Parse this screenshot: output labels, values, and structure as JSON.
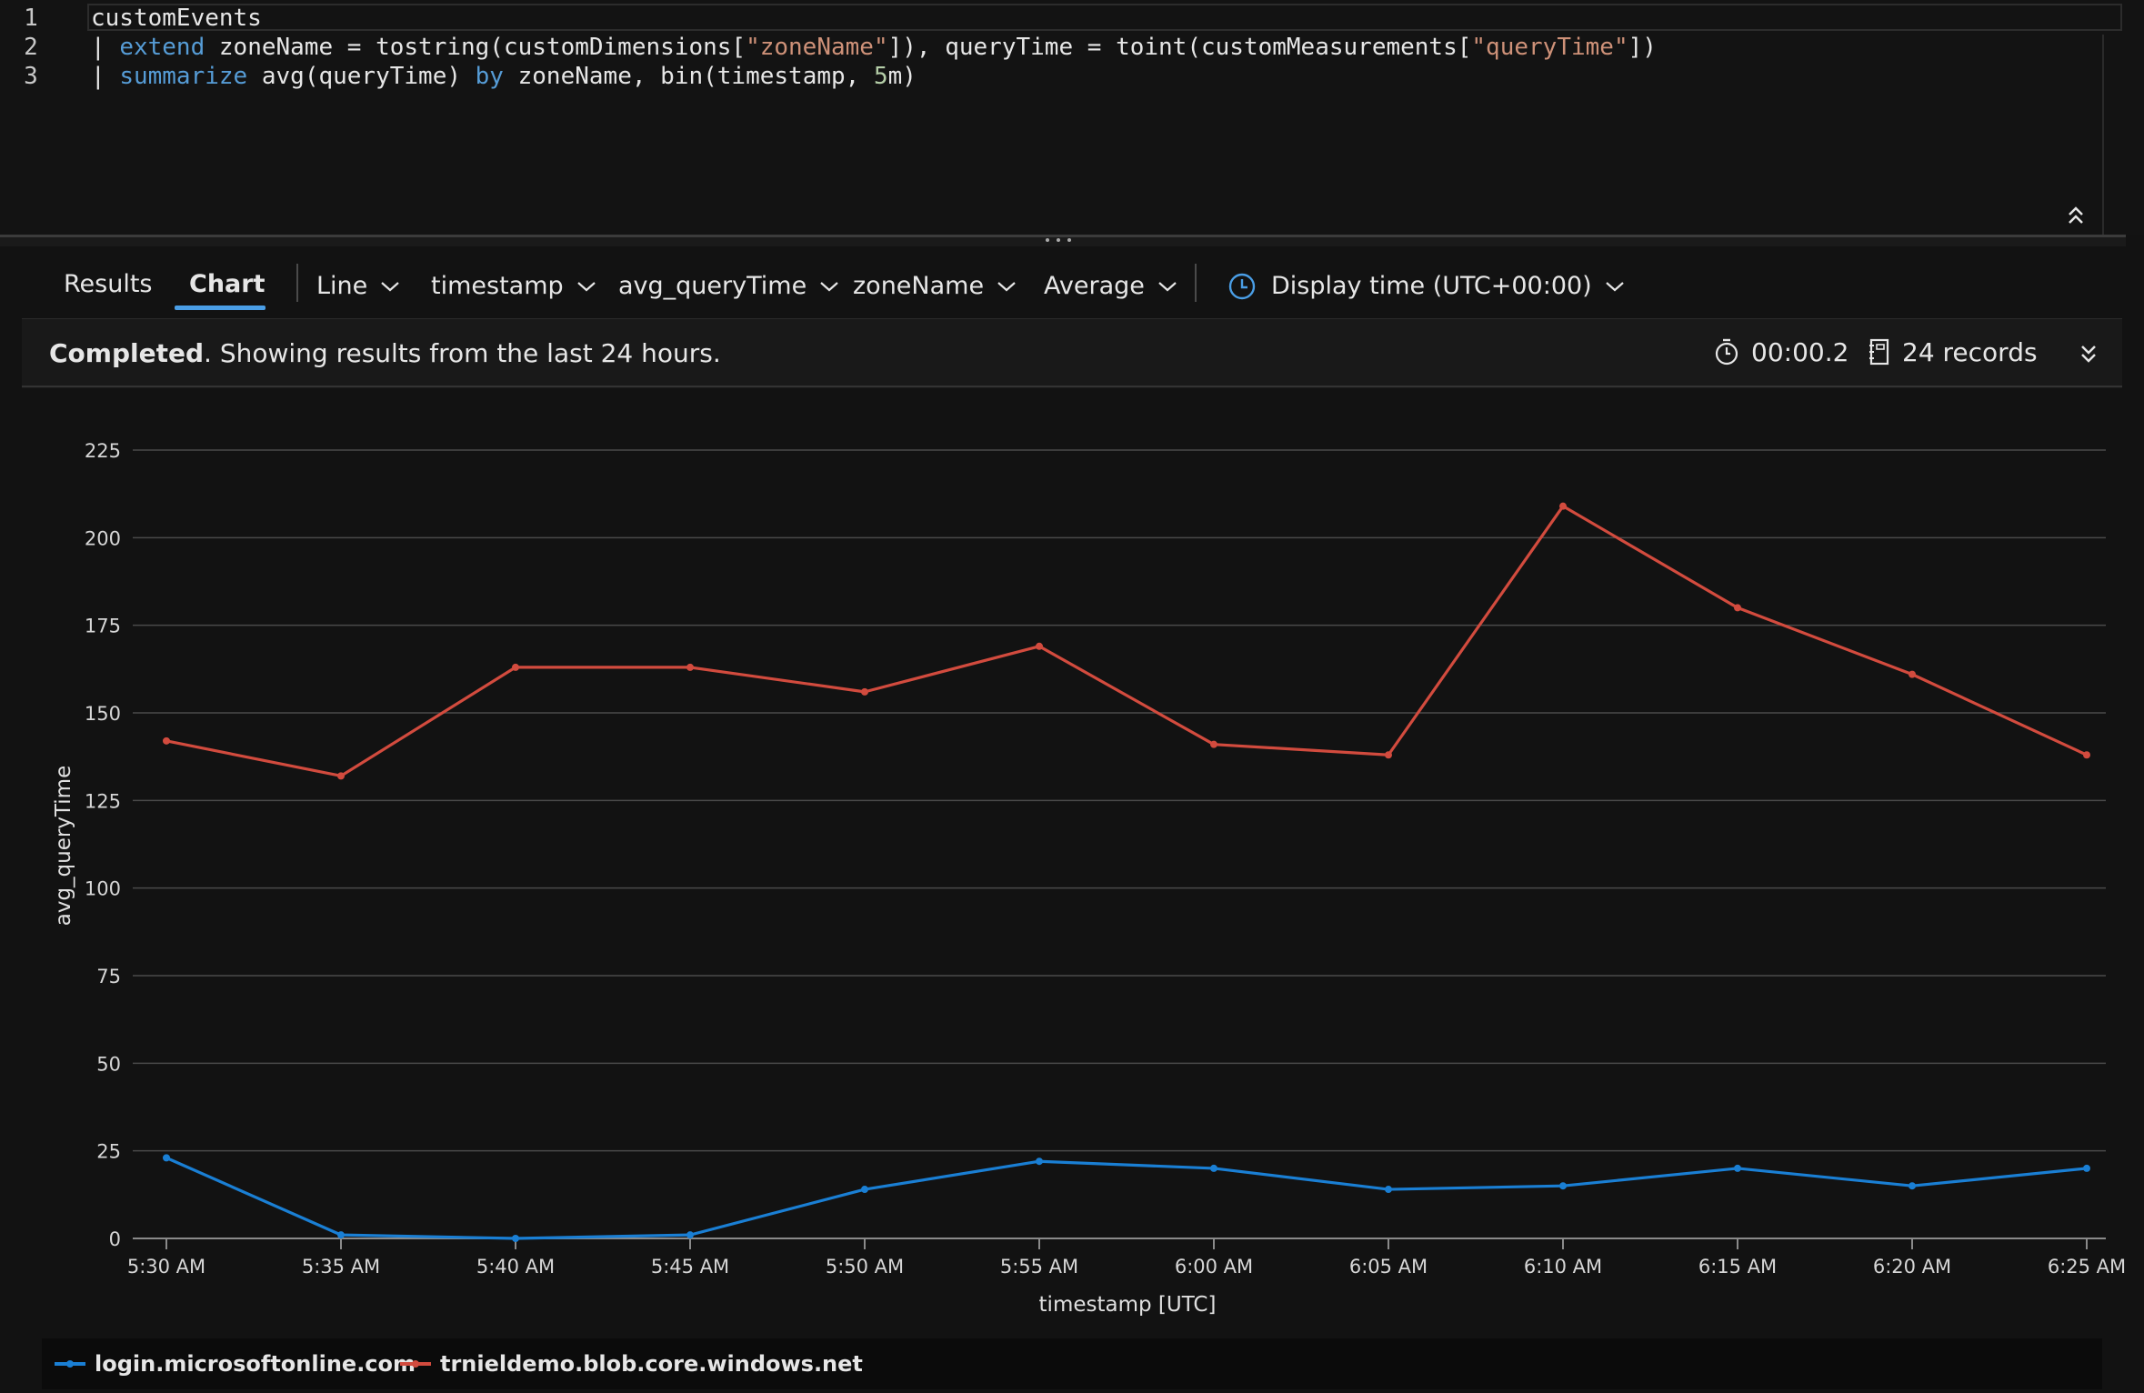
{
  "editor": {
    "lines": [
      {
        "number": "1",
        "segments": [
          {
            "text": "customEvents",
            "kind": "plain"
          }
        ]
      },
      {
        "number": "2",
        "segments": [
          {
            "text": "| ",
            "kind": "plain"
          },
          {
            "text": "extend",
            "kind": "kw"
          },
          {
            "text": " zoneName = tostring(customDimensions[",
            "kind": "plain"
          },
          {
            "text": "\"zoneName\"",
            "kind": "str"
          },
          {
            "text": "]), queryTime = toint(customMeasurements[",
            "kind": "plain"
          },
          {
            "text": "\"queryTime\"",
            "kind": "str"
          },
          {
            "text": "])",
            "kind": "plain"
          }
        ]
      },
      {
        "number": "3",
        "segments": [
          {
            "text": "| ",
            "kind": "plain"
          },
          {
            "text": "summarize",
            "kind": "kw"
          },
          {
            "text": " avg(queryTime) ",
            "kind": "plain"
          },
          {
            "text": "by",
            "kind": "kw"
          },
          {
            "text": " zoneName, bin(timestamp, ",
            "kind": "plain"
          },
          {
            "text": "5",
            "kind": "num"
          },
          {
            "text": "m)",
            "kind": "plain"
          }
        ]
      }
    ]
  },
  "toolbar": {
    "tabs": {
      "results": "Results",
      "chart": "Chart"
    },
    "chart_type": "Line",
    "x_column": "timestamp",
    "y_column": "avg_queryTime",
    "split_by": "zoneName",
    "aggregation": "Average",
    "display_time": "Display time (UTC+00:00)"
  },
  "status": {
    "bold": "Completed",
    "message": ". Showing results from the last 24 hours.",
    "duration": "00:00.2",
    "records": "24 records"
  },
  "colors": {
    "series_0": "#1a7fd4",
    "series_1": "#d24b3e",
    "accent": "#4a9ee6"
  },
  "chart_data": {
    "type": "line",
    "xlabel": "timestamp [UTC]",
    "ylabel": "avg_queryTime",
    "ylim": [
      0,
      225
    ],
    "yticks": [
      0,
      25,
      50,
      75,
      100,
      125,
      150,
      175,
      200,
      225
    ],
    "categories": [
      "5:30 AM",
      "5:35 AM",
      "5:40 AM",
      "5:45 AM",
      "5:50 AM",
      "5:55 AM",
      "6:00 AM",
      "6:05 AM",
      "6:10 AM",
      "6:15 AM",
      "6:20 AM",
      "6:25 AM"
    ],
    "series": [
      {
        "name": "login.microsoftonline.com",
        "color": "#1a7fd4",
        "values": [
          23,
          1,
          0,
          1,
          14,
          22,
          20,
          14,
          15,
          20,
          15,
          20
        ]
      },
      {
        "name": "trnieldemo.blob.core.windows.net",
        "color": "#d24b3e",
        "values": [
          142,
          132,
          163,
          163,
          156,
          169,
          141,
          138,
          209,
          180,
          161,
          138
        ]
      }
    ],
    "grid": "horizontal",
    "legend": "bottom-left"
  }
}
